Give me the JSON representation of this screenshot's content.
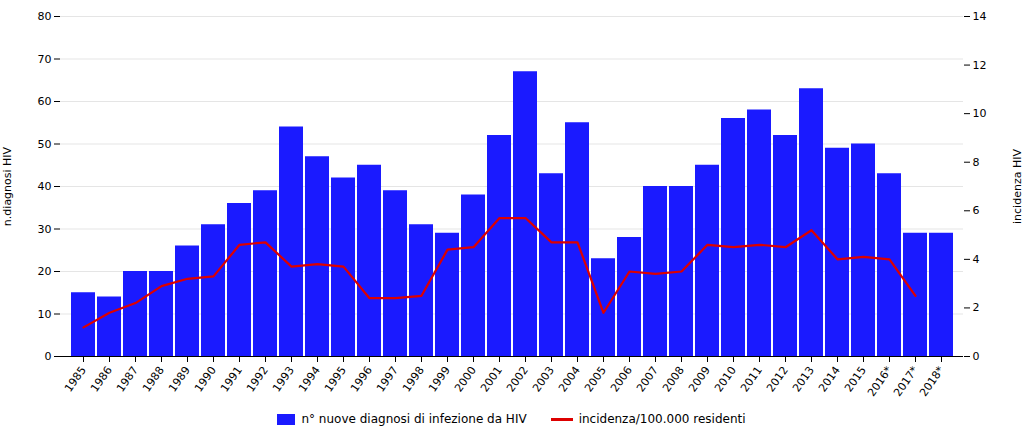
{
  "chart_data": {
    "type": "bar",
    "categories": [
      "1985",
      "1986",
      "1987",
      "1988",
      "1989",
      "1990",
      "1991",
      "1992",
      "1993",
      "1994",
      "1995",
      "1996",
      "1997",
      "1998",
      "1999",
      "2000",
      "2001",
      "2002",
      "2003",
      "2004",
      "2005",
      "2006",
      "2007",
      "2008",
      "2009",
      "2010",
      "2011",
      "2012",
      "2013",
      "2014",
      "2015",
      "2016*",
      "2017*",
      "2018*"
    ],
    "series": [
      {
        "name": "n° nuove diagnosi di infezione da HIV",
        "type": "bar",
        "color": "#1a1aff",
        "values": [
          15,
          14,
          20,
          20,
          26,
          31,
          36,
          39,
          54,
          47,
          42,
          45,
          39,
          31,
          29,
          38,
          52,
          67,
          43,
          55,
          23,
          28,
          40,
          40,
          45,
          56,
          58,
          52,
          63,
          49,
          50,
          43,
          29,
          29
        ]
      },
      {
        "name": "incidenza/100.000 residenti",
        "type": "line",
        "axis": "y2",
        "color": "#dd0000",
        "values": [
          1.2,
          1.8,
          2.2,
          2.9,
          3.2,
          3.3,
          4.6,
          4.7,
          3.7,
          3.8,
          3.7,
          2.4,
          2.4,
          2.5,
          4.4,
          4.5,
          5.7,
          5.7,
          4.7,
          4.7,
          1.8,
          3.5,
          3.4,
          3.5,
          4.6,
          4.5,
          4.6,
          4.5,
          5.2,
          4.0,
          4.1,
          4.0,
          2.5,
          null
        ]
      }
    ],
    "ylabel": "n.diagnosi HIV",
    "y2label": "incidenza HIV",
    "ylim": [
      0,
      80
    ],
    "yticks": [
      0,
      10,
      20,
      30,
      40,
      50,
      60,
      70,
      80
    ],
    "y2lim": [
      0,
      14
    ],
    "y2ticks": [
      0,
      2,
      4,
      6,
      8,
      10,
      12,
      14
    ],
    "grid": true,
    "legend": "bottom"
  }
}
